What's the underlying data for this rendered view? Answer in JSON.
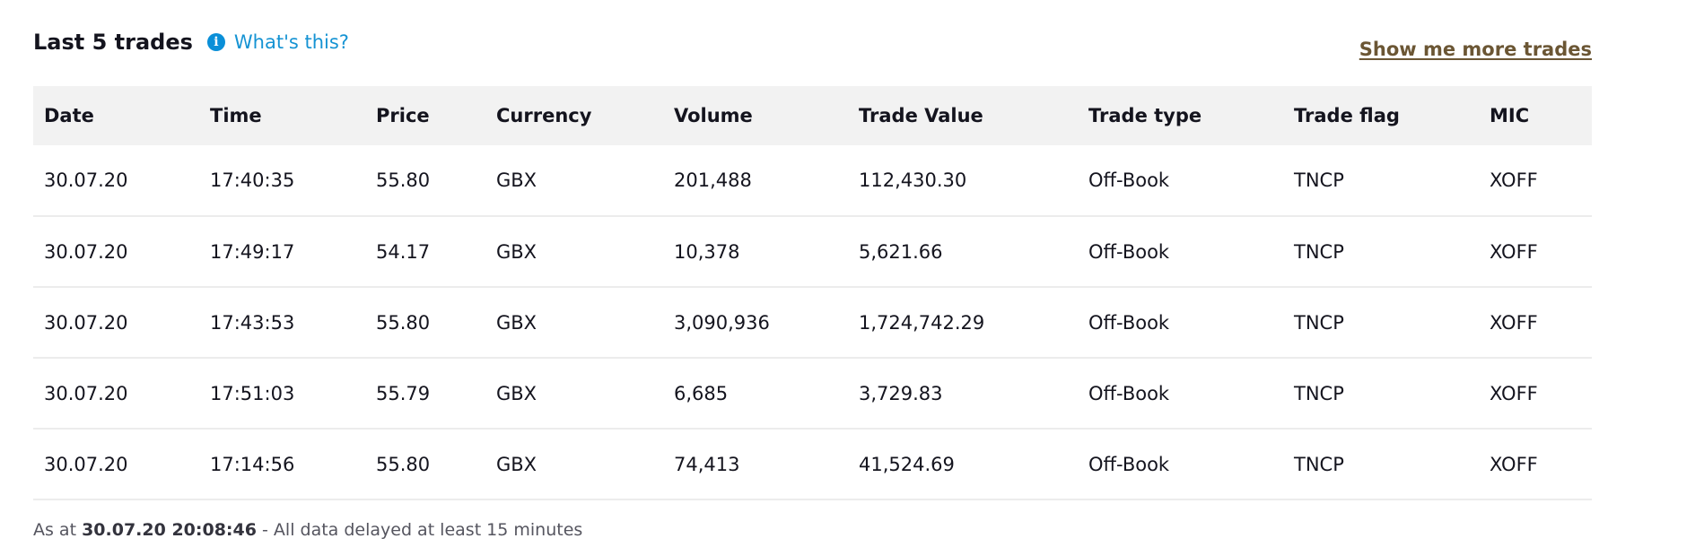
{
  "section": {
    "title": "Last 5 trades",
    "info_label": "What's this?",
    "more_label": "Show me more trades"
  },
  "table": {
    "columns": [
      "Date",
      "Time",
      "Price",
      "Currency",
      "Volume",
      "Trade Value",
      "Trade type",
      "Trade flag",
      "MIC"
    ],
    "rows": [
      [
        "30.07.20",
        "17:40:35",
        "55.80",
        "GBX",
        "201,488",
        "112,430.30",
        "Off-Book",
        "TNCP",
        "XOFF"
      ],
      [
        "30.07.20",
        "17:49:17",
        "54.17",
        "GBX",
        "10,378",
        "5,621.66",
        "Off-Book",
        "TNCP",
        "XOFF"
      ],
      [
        "30.07.20",
        "17:43:53",
        "55.80",
        "GBX",
        "3,090,936",
        "1,724,742.29",
        "Off-Book",
        "TNCP",
        "XOFF"
      ],
      [
        "30.07.20",
        "17:51:03",
        "55.79",
        "GBX",
        "6,685",
        "3,729.83",
        "Off-Book",
        "TNCP",
        "XOFF"
      ],
      [
        "30.07.20",
        "17:14:56",
        "55.80",
        "GBX",
        "74,413",
        "41,524.69",
        "Off-Book",
        "TNCP",
        "XOFF"
      ]
    ]
  },
  "footer": {
    "prefix": "As at",
    "timestamp": "30.07.20 20:08:46",
    "suffix": "- All data delayed at least 15 minutes"
  },
  "icons": {
    "info": "info-circle-icon"
  },
  "colors": {
    "link_blue": "#1593d3",
    "info_icon": "#0a8fd8",
    "more_link": "#6b5634",
    "header_bg": "#f2f2f2"
  }
}
